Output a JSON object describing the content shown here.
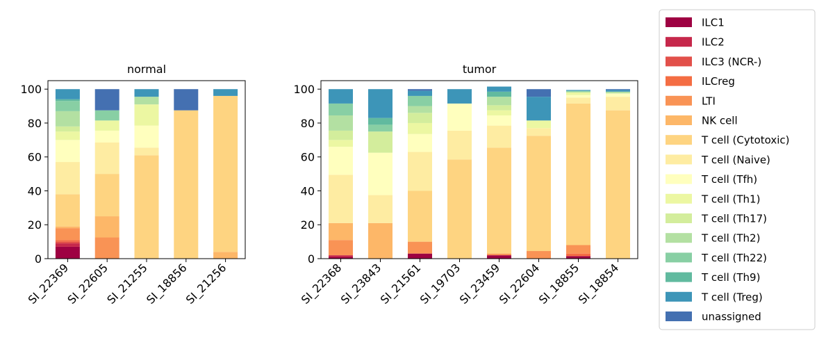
{
  "chart_data": {
    "type": "bar",
    "stacked": true,
    "ylim": [
      0,
      105
    ],
    "yticks": [
      0,
      20,
      40,
      60,
      80,
      100
    ],
    "legend_position": "right",
    "series_colors": [
      "#9e0142",
      "#c6284b",
      "#e2504a",
      "#f46d43",
      "#f99355",
      "#fdb768",
      "#fed481",
      "#feeca2",
      "#ffffbe",
      "#ecf7a2",
      "#d3ed9c",
      "#b3e0a2",
      "#88cfa4",
      "#61ba9f",
      "#3d95b8",
      "#4470b1"
    ],
    "series_names": [
      "ILC1",
      "ILC2",
      "ILC3 (NCR-)",
      "ILCreg",
      "LTI",
      "NK cell",
      "T cell (Cytotoxic)",
      "T cell (Naive)",
      "T cell (Tfh)",
      "T cell (Th1)",
      "T cell (Th17)",
      "T cell (Th2)",
      "T cell (Th22)",
      "T cell (Th9)",
      "T cell (Treg)",
      "unassigned"
    ],
    "panels": [
      {
        "title": "normal",
        "categories": [
          "SI_22369",
          "SI_22605",
          "SI_21255",
          "SI_18856",
          "SI_21256"
        ],
        "values": [
          [
            7,
            0,
            0,
            0,
            0
          ],
          [
            2,
            0,
            0,
            0,
            0
          ],
          [
            1,
            0,
            0,
            0,
            0
          ],
          [
            1,
            0,
            0,
            0,
            0
          ],
          [
            7,
            12.5,
            0,
            0,
            0
          ],
          [
            1,
            12.5,
            0,
            0,
            4
          ],
          [
            19,
            25,
            61,
            87.5,
            92
          ],
          [
            19,
            18.5,
            4.5,
            0,
            0
          ],
          [
            13,
            7,
            13,
            0,
            0
          ],
          [
            5,
            6,
            12.5,
            0,
            0
          ],
          [
            3,
            0,
            0,
            0,
            0
          ],
          [
            9,
            0,
            4.5,
            0,
            0
          ],
          [
            6,
            6,
            0,
            0,
            0
          ],
          [
            1,
            0,
            0,
            0,
            0
          ],
          [
            6,
            0,
            4.5,
            0,
            4
          ],
          [
            0,
            12.5,
            0,
            12.5,
            0
          ]
        ]
      },
      {
        "title": "tumor",
        "categories": [
          "SI_22368",
          "SI_23843",
          "SI_21561",
          "SI_19703",
          "SI_23459",
          "SI_22604",
          "SI_18855",
          "SI_18854"
        ],
        "values": [
          [
            1,
            0,
            3,
            0,
            2,
            0,
            1.5,
            0
          ],
          [
            1,
            0,
            0,
            0,
            0,
            0,
            0,
            0
          ],
          [
            0,
            0,
            0,
            0,
            0,
            0,
            0,
            0
          ],
          [
            0,
            0,
            0,
            0,
            0,
            0,
            1.5,
            0
          ],
          [
            9,
            0,
            7,
            0,
            1,
            4.5,
            5,
            0
          ],
          [
            10,
            21,
            0,
            0,
            0,
            0,
            0,
            0
          ],
          [
            0,
            0,
            30,
            58.5,
            62.5,
            68,
            83.5,
            87.5
          ],
          [
            28.5,
            16.5,
            23,
            17,
            13,
            4.5,
            3.5,
            8
          ],
          [
            16.5,
            25,
            10.5,
            16,
            6,
            0,
            1.5,
            2
          ],
          [
            4,
            0,
            6.5,
            0,
            3,
            4.5,
            1.5,
            0
          ],
          [
            5.5,
            12.5,
            6,
            0,
            3,
            0,
            0,
            0
          ],
          [
            9,
            0,
            4,
            0,
            5,
            0,
            0.5,
            1
          ],
          [
            7,
            4,
            6,
            0,
            0,
            0,
            0.5,
            0
          ],
          [
            0,
            4,
            0,
            0,
            3,
            0,
            0,
            0
          ],
          [
            8.5,
            17,
            3,
            8.5,
            3,
            14,
            0.5,
            1
          ],
          [
            0,
            0,
            1,
            0,
            0,
            4.5,
            0,
            0.5
          ]
        ]
      }
    ]
  }
}
